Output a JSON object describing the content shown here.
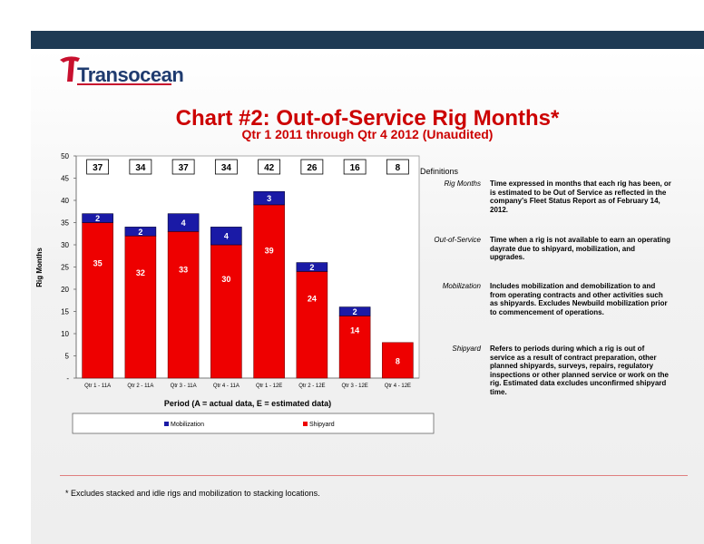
{
  "brand": {
    "logo_text": "Transocean"
  },
  "chart_data": {
    "type": "bar",
    "title": "Chart #2: Out-of-Service Rig Months*",
    "subtitle": "Qtr 1 2011 through Qtr 4 2012 (Unaudited)",
    "categories": [
      "Qtr 1 - 11A",
      "Qtr 2 - 11A",
      "Qtr 3 - 11A",
      "Qtr 4 - 11A",
      "Qtr 1 - 12E",
      "Qtr 2 - 12E",
      "Qtr 3 - 12E",
      "Qtr 4 - 12E"
    ],
    "series": [
      {
        "name": "Shipyard",
        "values": [
          35,
          32,
          33,
          30,
          39,
          24,
          14,
          8
        ],
        "color": "#ee0000"
      },
      {
        "name": "Mobilization",
        "values": [
          2,
          2,
          4,
          4,
          3,
          2,
          2,
          0
        ],
        "color": "#1a1aa6"
      }
    ],
    "totals": [
      37,
      34,
      37,
      34,
      42,
      26,
      16,
      8
    ],
    "xlabel": "Period (A = actual data, E = estimated data)",
    "ylabel": "Rig Months",
    "ylim": [
      0,
      50
    ],
    "yticks": [
      "-",
      "5",
      "10",
      "15",
      "20",
      "25",
      "30",
      "35",
      "40",
      "45",
      "50"
    ],
    "legend_position": "bottom",
    "stacked": true
  },
  "definitions": {
    "heading": "Definitions",
    "items": [
      {
        "term": "Rig Months",
        "text": "Time expressed in months that each rig has been, or is estimated to be Out of Service as reflected in the company's Fleet Status Report as of February 14, 2012."
      },
      {
        "term": "Out-of-Service",
        "text": "Time when a rig is not available to earn an operating dayrate due to shipyard, mobilization, and upgrades."
      },
      {
        "term": "Mobilization",
        "text": "Includes mobilization and demobilization to and from operating contracts and other activities such as shipyards. Excludes Newbuild mobilization prior to commencement of operations."
      },
      {
        "term": "Shipyard",
        "text": "Refers to periods during which a rig is out of service as a result of contract preparation, other planned shipyards, surveys, repairs, regulatory inspections or other planned service or work on the rig. Estimated data excludes unconfirmed shipyard time."
      }
    ]
  },
  "footnote": "* Excludes stacked and idle rigs and mobilization to stacking locations."
}
